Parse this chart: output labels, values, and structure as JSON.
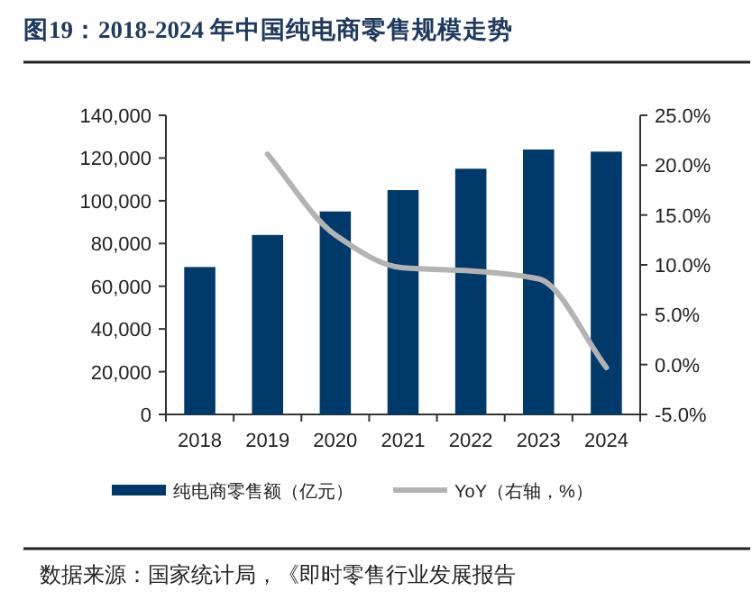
{
  "chart_data": {
    "type": "bar",
    "title": "图19：2018-2024 年中国纯电商零售规模走势",
    "categories": [
      "2018",
      "2019",
      "2020",
      "2021",
      "2022",
      "2023",
      "2024"
    ],
    "series": [
      {
        "name": "纯电商零售额（亿元）",
        "color": "#003a6b",
        "values": [
          69000,
          84000,
          95000,
          105000,
          115000,
          124000,
          123000
        ]
      },
      {
        "name": "YoY（右轴，%）",
        "type": "line",
        "axis": "y2",
        "color": "#b3b3b3",
        "values": [
          null,
          21.1,
          13.0,
          9.7,
          9.4,
          8.6,
          -0.3
        ]
      }
    ],
    "ylim": [
      0,
      140000
    ],
    "yticks": [
      {
        "value": 0,
        "label": "0"
      },
      {
        "value": 20000,
        "label": "20,000"
      },
      {
        "value": 40000,
        "label": "40,000"
      },
      {
        "value": 60000,
        "label": "60,000"
      },
      {
        "value": 80000,
        "label": "80,000"
      },
      {
        "value": 100000,
        "label": "100,000"
      },
      {
        "value": 120000,
        "label": "120,000"
      },
      {
        "value": 140000,
        "label": "140,000"
      }
    ],
    "y2lim": [
      -5,
      25
    ],
    "y2ticks": [
      {
        "value": -5,
        "label": "-5.0%"
      },
      {
        "value": 0,
        "label": "0.0%"
      },
      {
        "value": 5,
        "label": "5.0%"
      },
      {
        "value": 10,
        "label": "10.0%"
      },
      {
        "value": 15,
        "label": "15.0%"
      },
      {
        "value": 20,
        "label": "20.0%"
      },
      {
        "value": 25,
        "label": "25.0%"
      }
    ],
    "grid": false,
    "legend": "bottom",
    "marker": "none",
    "line_style": "solid",
    "annotations": [
      "数据来源：国家统计局，《即时零售行业发展报告"
    ]
  }
}
